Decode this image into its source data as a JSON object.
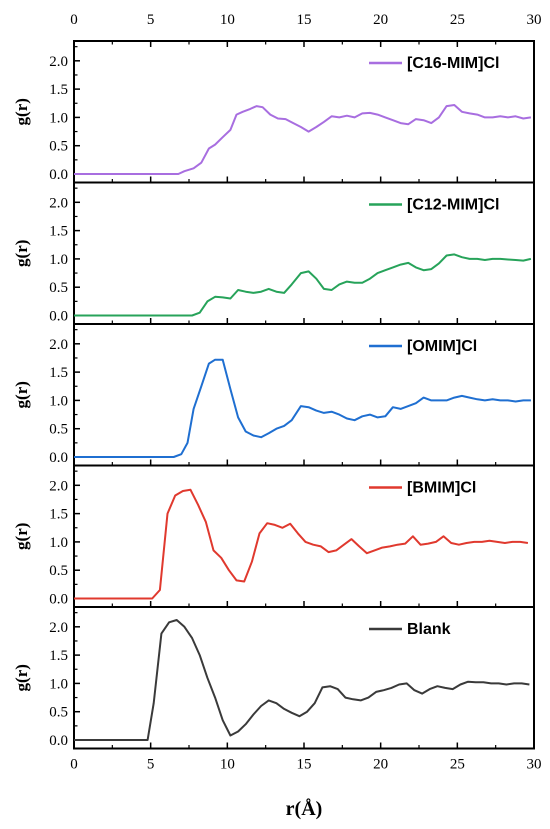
{
  "chart_data": {
    "type": "line",
    "xlabel": "r(Å)",
    "ylabel": "g(r)",
    "xlim": [
      0,
      30
    ],
    "ylim": [
      -0.15,
      2.35
    ],
    "x_ticks": [
      0,
      5,
      10,
      15,
      20,
      25,
      30
    ],
    "y_ticks": [
      0.0,
      0.5,
      1.0,
      1.5,
      2.0
    ],
    "legend_position": "top-right",
    "panels": [
      {
        "series": {
          "name": "[C16-MIM]Cl",
          "color": "#a86ee0",
          "x": [
            0,
            6.8,
            7.2,
            7.8,
            8.3,
            8.8,
            9.2,
            9.7,
            10.2,
            10.6,
            11.0,
            11.5,
            11.9,
            12.3,
            12.8,
            13.3,
            13.8,
            14.3,
            14.8,
            15.3,
            15.8,
            16.3,
            16.8,
            17.3,
            17.8,
            18.3,
            18.8,
            19.3,
            19.8,
            20.3,
            20.8,
            21.3,
            21.8,
            22.3,
            22.8,
            23.3,
            23.8,
            24.3,
            24.8,
            25.3,
            25.8,
            26.3,
            26.8,
            27.3,
            27.8,
            28.3,
            28.8,
            29.3,
            29.8
          ],
          "y": [
            0.0,
            0.0,
            0.05,
            0.1,
            0.2,
            0.45,
            0.52,
            0.65,
            0.78,
            1.05,
            1.1,
            1.15,
            1.2,
            1.18,
            1.05,
            0.98,
            0.97,
            0.9,
            0.83,
            0.75,
            0.83,
            0.92,
            1.02,
            1.0,
            1.03,
            1.0,
            1.07,
            1.08,
            1.05,
            1.0,
            0.95,
            0.9,
            0.88,
            0.97,
            0.95,
            0.9,
            1.0,
            1.2,
            1.22,
            1.1,
            1.07,
            1.05,
            1.0,
            1.0,
            1.02,
            1.0,
            1.02,
            0.98,
            1.0
          ]
        }
      },
      {
        "series": {
          "name": "[C12-MIM]Cl",
          "color": "#27a35a",
          "x": [
            0,
            7.7,
            8.2,
            8.7,
            9.2,
            9.7,
            10.2,
            10.7,
            11.2,
            11.7,
            12.2,
            12.7,
            13.2,
            13.7,
            14.2,
            14.8,
            15.3,
            15.8,
            16.3,
            16.8,
            17.3,
            17.8,
            18.3,
            18.8,
            19.3,
            19.8,
            20.3,
            20.8,
            21.3,
            21.8,
            22.3,
            22.8,
            23.3,
            23.8,
            24.3,
            24.8,
            25.3,
            25.8,
            26.3,
            26.8,
            27.3,
            27.8,
            28.3,
            28.8,
            29.3,
            29.8
          ],
          "y": [
            0.0,
            0.0,
            0.05,
            0.25,
            0.33,
            0.32,
            0.3,
            0.45,
            0.42,
            0.4,
            0.42,
            0.47,
            0.42,
            0.4,
            0.55,
            0.75,
            0.78,
            0.65,
            0.47,
            0.45,
            0.55,
            0.6,
            0.58,
            0.58,
            0.65,
            0.75,
            0.8,
            0.85,
            0.9,
            0.93,
            0.85,
            0.8,
            0.82,
            0.92,
            1.06,
            1.08,
            1.03,
            1.0,
            1.0,
            0.98,
            1.0,
            1.0,
            0.99,
            0.98,
            0.97,
            1.0
          ]
        }
      },
      {
        "series": {
          "name": "[OMIM]Cl",
          "color": "#1f6fd1",
          "x": [
            0,
            6.5,
            7.0,
            7.4,
            7.8,
            8.3,
            8.8,
            9.2,
            9.7,
            10.2,
            10.7,
            11.2,
            11.7,
            12.2,
            12.7,
            13.2,
            13.7,
            14.2,
            14.8,
            15.3,
            15.8,
            16.3,
            16.8,
            17.3,
            17.8,
            18.3,
            18.8,
            19.3,
            19.8,
            20.3,
            20.8,
            21.3,
            21.8,
            22.3,
            22.8,
            23.3,
            23.8,
            24.3,
            24.8,
            25.3,
            25.8,
            26.3,
            26.8,
            27.3,
            27.8,
            28.3,
            28.8,
            29.3,
            29.8
          ],
          "y": [
            0.0,
            0.0,
            0.05,
            0.25,
            0.85,
            1.25,
            1.65,
            1.72,
            1.72,
            1.2,
            0.7,
            0.45,
            0.38,
            0.35,
            0.42,
            0.5,
            0.55,
            0.65,
            0.9,
            0.88,
            0.82,
            0.78,
            0.8,
            0.75,
            0.68,
            0.65,
            0.72,
            0.75,
            0.7,
            0.72,
            0.88,
            0.85,
            0.9,
            0.95,
            1.05,
            1.0,
            1.0,
            1.0,
            1.05,
            1.08,
            1.05,
            1.02,
            1.0,
            1.02,
            1.0,
            1.0,
            0.98,
            1.0,
            1.0
          ]
        }
      },
      {
        "series": {
          "name": "[BMIM]Cl",
          "color": "#e0392e",
          "x": [
            0,
            5.1,
            5.6,
            6.1,
            6.6,
            7.1,
            7.6,
            8.1,
            8.6,
            9.1,
            9.6,
            10.1,
            10.6,
            11.1,
            11.6,
            12.1,
            12.6,
            13.1,
            13.6,
            14.1,
            14.6,
            15.1,
            15.6,
            16.1,
            16.6,
            17.1,
            17.6,
            18.1,
            18.6,
            19.1,
            19.6,
            20.1,
            20.6,
            21.1,
            21.6,
            22.1,
            22.6,
            23.1,
            23.6,
            24.1,
            24.6,
            25.1,
            25.6,
            26.1,
            26.6,
            27.1,
            27.6,
            28.1,
            28.6,
            29.1,
            29.6
          ],
          "y": [
            0.0,
            0.0,
            0.15,
            1.5,
            1.82,
            1.9,
            1.92,
            1.65,
            1.35,
            0.85,
            0.72,
            0.5,
            0.32,
            0.3,
            0.65,
            1.15,
            1.33,
            1.3,
            1.25,
            1.32,
            1.15,
            1.0,
            0.95,
            0.92,
            0.82,
            0.85,
            0.95,
            1.05,
            0.92,
            0.8,
            0.85,
            0.9,
            0.92,
            0.95,
            0.97,
            1.1,
            0.95,
            0.97,
            1.0,
            1.1,
            0.98,
            0.95,
            0.98,
            1.0,
            1.0,
            1.02,
            1.0,
            0.98,
            1.0,
            1.0,
            0.98
          ]
        }
      },
      {
        "series": {
          "name": "Blank",
          "color": "#3a3a3a",
          "x": [
            0,
            4.8,
            5.2,
            5.7,
            6.2,
            6.7,
            7.2,
            7.7,
            8.2,
            8.7,
            9.2,
            9.7,
            10.2,
            10.7,
            11.2,
            11.7,
            12.2,
            12.7,
            13.2,
            13.7,
            14.2,
            14.7,
            15.2,
            15.7,
            16.2,
            16.7,
            17.2,
            17.7,
            18.2,
            18.7,
            19.2,
            19.7,
            20.2,
            20.7,
            21.2,
            21.7,
            22.2,
            22.7,
            23.2,
            23.7,
            24.2,
            24.7,
            25.2,
            25.7,
            26.2,
            26.7,
            27.2,
            27.7,
            28.2,
            28.7,
            29.2,
            29.7
          ],
          "y": [
            0.0,
            0.0,
            0.65,
            1.88,
            2.08,
            2.12,
            2.0,
            1.8,
            1.5,
            1.1,
            0.75,
            0.35,
            0.08,
            0.15,
            0.28,
            0.45,
            0.6,
            0.7,
            0.65,
            0.55,
            0.48,
            0.42,
            0.5,
            0.65,
            0.93,
            0.95,
            0.9,
            0.75,
            0.72,
            0.7,
            0.75,
            0.85,
            0.88,
            0.92,
            0.98,
            1.0,
            0.88,
            0.82,
            0.9,
            0.95,
            0.92,
            0.9,
            0.98,
            1.03,
            1.02,
            1.02,
            1.0,
            1.0,
            0.98,
            1.0,
            1.0,
            0.98
          ]
        }
      }
    ]
  }
}
